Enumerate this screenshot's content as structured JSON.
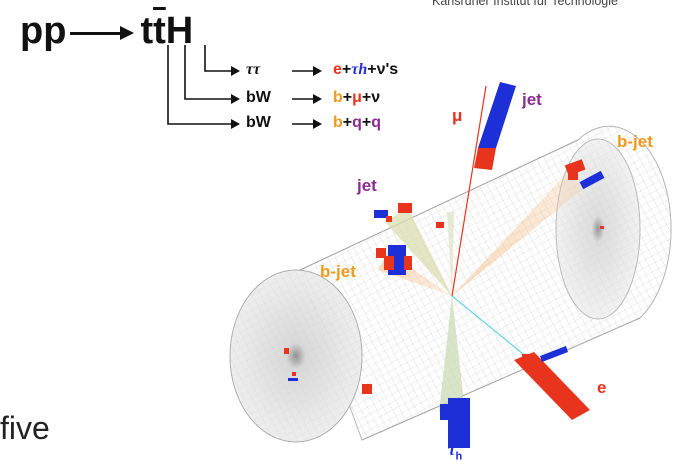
{
  "header": {
    "institute": "Karlsruher Institut für Technologie"
  },
  "process": {
    "initial": "pp",
    "t": "t",
    "tbar": "t",
    "higgs": "H"
  },
  "decays": [
    {
      "parent": "ττ",
      "products": [
        {
          "text": "e",
          "color": "red"
        },
        {
          "text": "+",
          "color": "black"
        },
        {
          "text": "τh",
          "color": "blue"
        },
        {
          "text": "+ν's",
          "color": "black"
        }
      ]
    },
    {
      "parent": "bW",
      "products": [
        {
          "text": "b",
          "color": "orange"
        },
        {
          "text": "+",
          "color": "black"
        },
        {
          "text": "μ",
          "color": "red"
        },
        {
          "text": "+ν",
          "color": "black"
        }
      ]
    },
    {
      "parent": "bW",
      "products": [
        {
          "text": "b",
          "color": "orange"
        },
        {
          "text": "+",
          "color": "black"
        },
        {
          "text": "q",
          "color": "purple"
        },
        {
          "text": "+",
          "color": "black"
        },
        {
          "text": "q",
          "color": "purple"
        }
      ]
    }
  ],
  "event_labels": {
    "mu": "μ",
    "jet_top": "jet",
    "bjet_right": "b-jet",
    "jet_left": "jet",
    "bjet_left": "b-jet",
    "electron": "e",
    "tau": "τ",
    "tau_sub": "h"
  },
  "caption": "five",
  "colors": {
    "red": "#e8331d",
    "blue": "#1d2fd6",
    "orange": "#f29a1f",
    "purple": "#8b2d8f",
    "black": "#111111",
    "detector_mesh": "#bdbdbd"
  }
}
